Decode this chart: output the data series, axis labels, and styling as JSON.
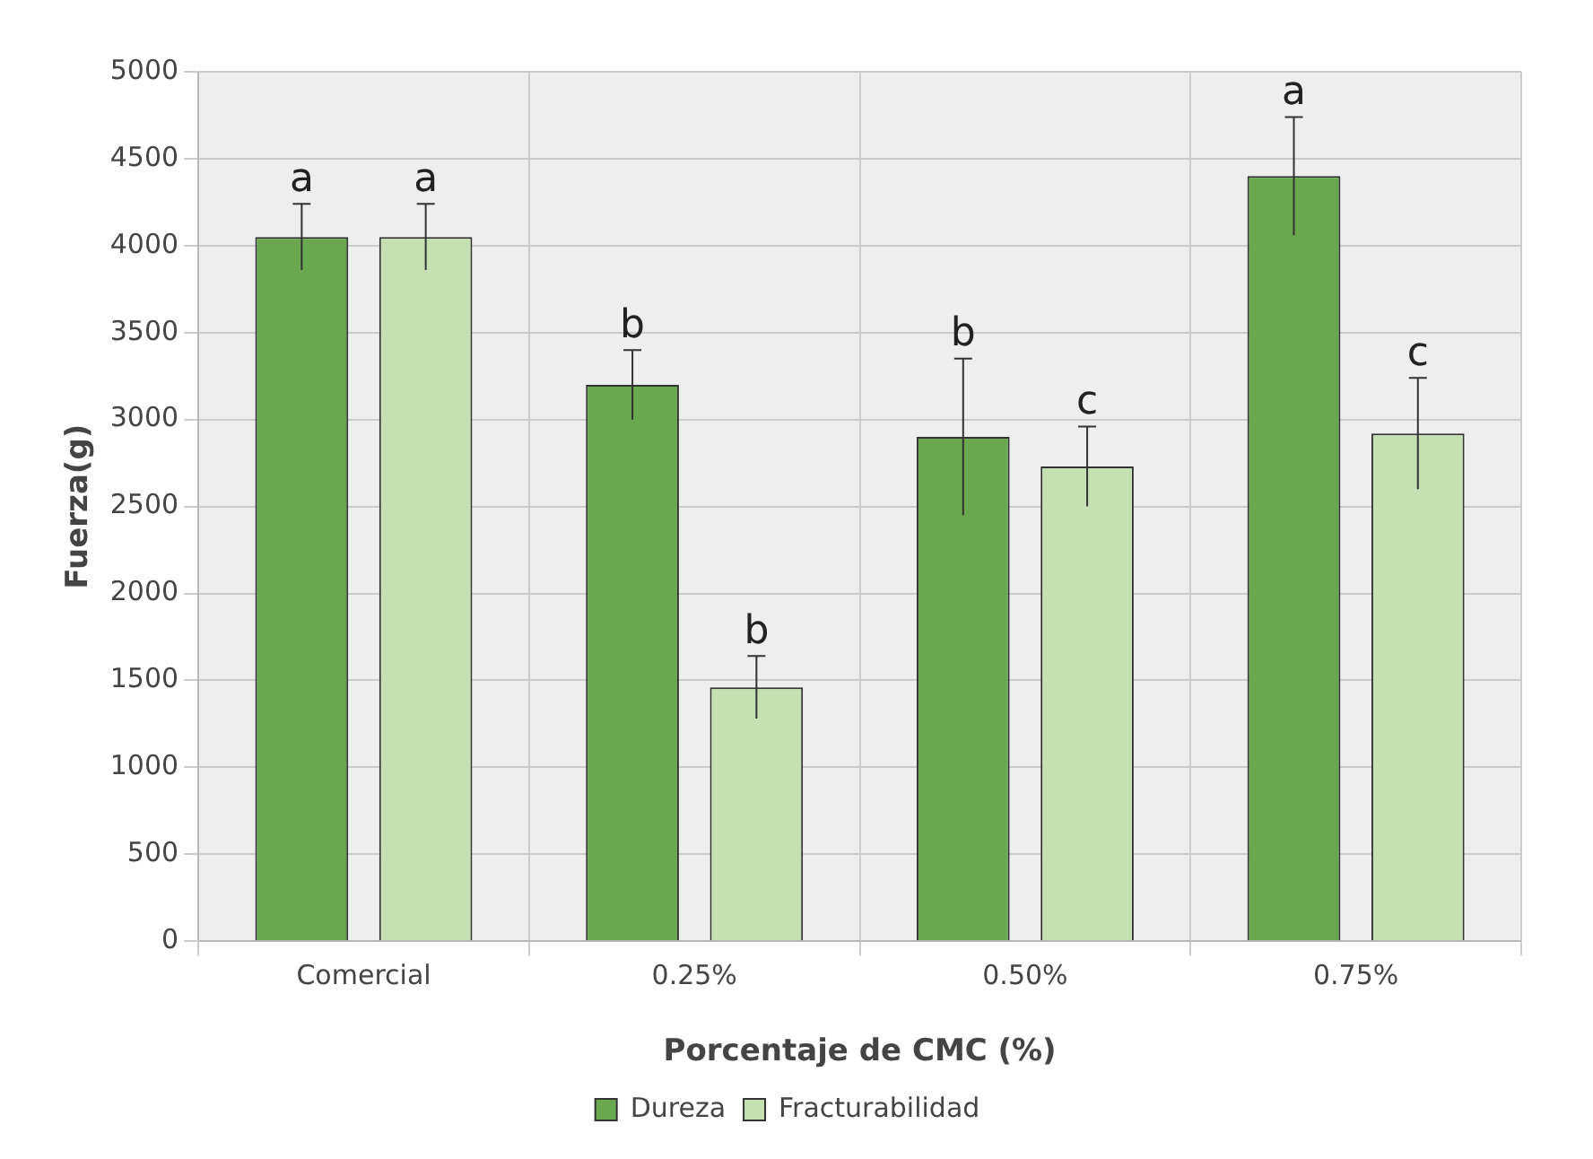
{
  "chart_data": {
    "type": "bar",
    "xlabel": "Porcentaje de CMC (%)",
    "ylabel": "Fuerza(g)",
    "categories": [
      "Comercial",
      "0.25%",
      "0.50%",
      "0.75%"
    ],
    "series": [
      {
        "name": "Dureza",
        "color": "#6aa84f",
        "values": [
          4050,
          3200,
          2900,
          4400
        ],
        "errors": [
          190,
          200,
          450,
          340
        ]
      },
      {
        "name": "Fracturabilidad",
        "color": "#c6e0b4",
        "values": [
          4050,
          1460,
          2730,
          2920
        ],
        "errors": [
          190,
          180,
          230,
          320
        ]
      }
    ],
    "ylim": [
      0,
      5000
    ],
    "yticks": [
      0,
      500,
      1000,
      1500,
      2000,
      2500,
      3000,
      3500,
      4000,
      4500,
      5000
    ],
    "grid": true,
    "legend": "bottom",
    "annotations": [
      "a",
      "a",
      "b",
      "b",
      "b",
      "c",
      "a",
      "c"
    ]
  }
}
